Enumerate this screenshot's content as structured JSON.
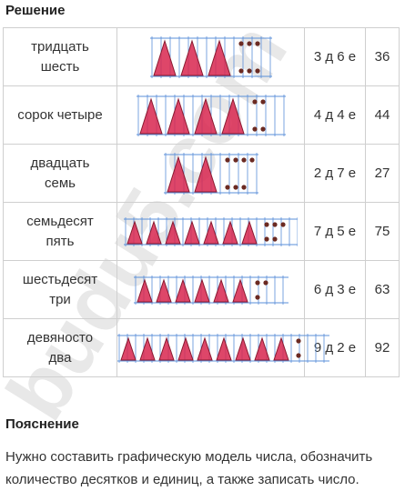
{
  "headings": {
    "solution": "Решение",
    "explanation": "Пояснение"
  },
  "rows": [
    {
      "word1": "тридцать",
      "word2": "шесть",
      "code": "3 д 6 е",
      "number": "36",
      "tens": 3,
      "ones": 6
    },
    {
      "word1": "сорок четыре",
      "word2": "",
      "code": "4 д 4 е",
      "number": "44",
      "tens": 4,
      "ones": 4
    },
    {
      "word1": "двадцать",
      "word2": "семь",
      "code": "2 д 7 е",
      "number": "27",
      "tens": 2,
      "ones": 7
    },
    {
      "word1": "семьдесят",
      "word2": "пять",
      "code": "7 д 5 е",
      "number": "75",
      "tens": 7,
      "ones": 5
    },
    {
      "word1": "шестьдесят",
      "word2": "три",
      "code": "6 д 3 е",
      "number": "63",
      "tens": 6,
      "ones": 3
    },
    {
      "word1": "девяносто",
      "word2": "два",
      "code": "9 д 2 е",
      "number": "92",
      "tens": 9,
      "ones": 2
    }
  ],
  "explanation_text": "Нужно составить графическую модель числа, обозначить количество десятков и единиц, а также записать число.",
  "watermark": "budu5.com",
  "colors": {
    "triangle": "#d8264f",
    "triangle_outline": "#8a1a30",
    "dot": "#6b2a22",
    "grid": "#5a8fd8",
    "watermark": "#e6e6e6"
  }
}
